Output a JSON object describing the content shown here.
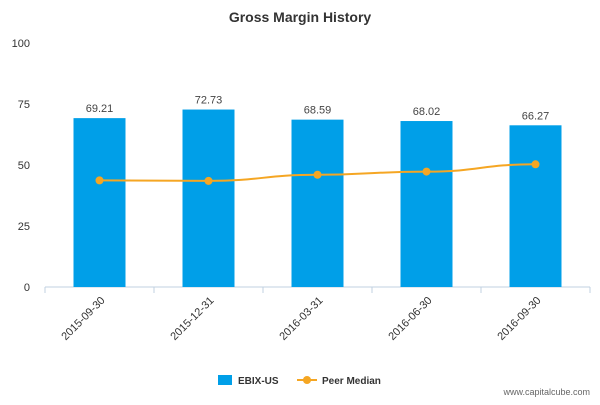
{
  "chart_data": {
    "type": "bar",
    "title": "Gross Margin History",
    "categories": [
      "2015-09-30",
      "2015-12-31",
      "2016-03-31",
      "2016-06-30",
      "2016-09-30"
    ],
    "series": [
      {
        "name": "EBIX-US",
        "type": "bar",
        "values": [
          69.21,
          72.73,
          68.59,
          68.02,
          66.27
        ],
        "color": "#009fe8"
      },
      {
        "name": "Peer Median",
        "type": "line",
        "values": [
          43.7,
          43.5,
          46.0,
          47.3,
          50.3
        ],
        "color": "#f5a623"
      }
    ],
    "data_labels": [
      "69.21",
      "72.73",
      "68.59",
      "68.02",
      "66.27"
    ],
    "ylim": [
      0,
      100
    ],
    "yticks": [
      0,
      25,
      50,
      75,
      100
    ],
    "grid": false,
    "legend_position": "bottom-center",
    "watermark": "www.capitalcube.com"
  }
}
